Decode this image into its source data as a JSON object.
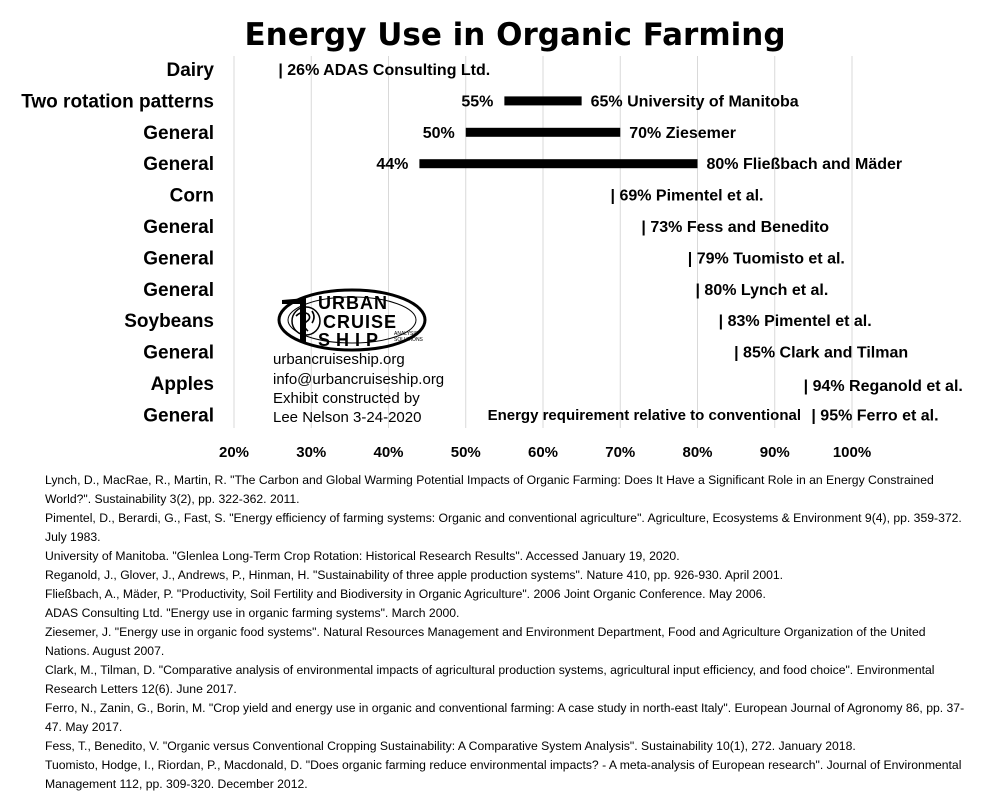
{
  "chart_data": {
    "type": "bar",
    "title": "Energy Use in Organic Farming",
    "xlabel": "Energy requirement relative to conventional",
    "xlim": [
      20,
      100
    ],
    "xticks": [
      "20%",
      "30%",
      "40%",
      "50%",
      "60%",
      "70%",
      "80%",
      "90%",
      "100%"
    ],
    "grid": "vertical",
    "rows": [
      {
        "category": "Dairy",
        "low": 26,
        "high": 26,
        "low_label": "",
        "high_label": "| 26% ADAS Consulting Ltd."
      },
      {
        "category": "Two rotation patterns",
        "low": 55,
        "high": 65,
        "low_label": "55%",
        "high_label": "65% University of Manitoba"
      },
      {
        "category": "General",
        "low": 50,
        "high": 70,
        "low_label": "50%",
        "high_label": "70% Ziesemer"
      },
      {
        "category": "General",
        "low": 44,
        "high": 80,
        "low_label": "44%",
        "high_label": "80% Fließbach and Mäder"
      },
      {
        "category": "Corn",
        "low": 69,
        "high": 69,
        "low_label": "",
        "high_label": "| 69% Pimentel et al."
      },
      {
        "category": "General",
        "low": 73,
        "high": 73,
        "low_label": "",
        "high_label": "| 73% Fess and Benedito"
      },
      {
        "category": "General",
        "low": 79,
        "high": 79,
        "low_label": "",
        "high_label": "| 79% Tuomisto et al."
      },
      {
        "category": "General",
        "low": 80,
        "high": 80,
        "low_label": "",
        "high_label": "| 80% Lynch et al."
      },
      {
        "category": "Soybeans",
        "low": 83,
        "high": 83,
        "low_label": "",
        "high_label": "| 83% Pimentel et al."
      },
      {
        "category": "General",
        "low": 85,
        "high": 85,
        "low_label": "",
        "high_label": "| 85% Clark and Tilman"
      },
      {
        "category": "Apples",
        "low": 94,
        "high": 94,
        "low_label": "",
        "high_label": "| 94% Reganold et al."
      },
      {
        "category": "General",
        "low": 95,
        "high": 95,
        "low_label": "",
        "high_label": "| 95% Ferro et al."
      }
    ]
  },
  "logo": {
    "line1": "URBAN",
    "line2": "CRUISE",
    "line3": "SHIP",
    "tag1": "ANALYSIS",
    "tag2": "SOLUTIONS"
  },
  "contact": {
    "website": "urbancruiseship.org",
    "email": "info@urbancruiseship.org",
    "credit1": "Exhibit constructed by",
    "credit2": "Lee Nelson 3-24-2020"
  },
  "references": [
    "Lynch, D., MacRae, R., Martin, R. \"The Carbon and Global Warming Potential Impacts of Organic Farming: Does It Have a Significant Role in an Energy Constrained World?\". Sustainability 3(2), pp. 322-362. 2011.",
    "Pimentel, D., Berardi, G., Fast, S. \"Energy efficiency of farming systems: Organic and conventional agriculture\". Agriculture, Ecosystems & Environment 9(4), pp. 359-372. July 1983.",
    "University of Manitoba. \"Glenlea Long-Term Crop Rotation: Historical Research Results\". Accessed January 19, 2020.",
    "Reganold, J., Glover, J., Andrews, P., Hinman, H. \"Sustainability of three apple production systems\". Nature 410, pp. 926-930. April 2001.",
    "Fließbach, A., Mäder, P. \"Productivity, Soil Fertility and Biodiversity in Organic Agriculture\". 2006 Joint Organic Conference. May 2006.",
    "ADAS Consulting Ltd. \"Energy use in organic farming systems\". March 2000.",
    "Ziesemer, J. \"Energy use in organic food systems\". Natural Resources Management and Environment Department, Food and Agriculture Organization of the United Nations. August 2007.",
    "Clark, M., Tilman, D. \"Comparative analysis of environmental impacts of agricultural production systems, agricultural input efficiency, and food choice\". Environmental Research Letters 12(6). June 2017.",
    "Ferro, N., Zanin, G., Borin, M. \"Crop yield and energy use in organic and conventional farming: A case study in north-east Italy\". European Journal of Agronomy 86, pp. 37-47. May 2017.",
    "Fess, T., Benedito, V. \"Organic versus Conventional Cropping Sustainability: A Comparative System Analysis\". Sustainability 10(1), 272. January 2018.",
    "Tuomisto, Hodge, I., Riordan, P., Macdonald, D. \"Does organic farming reduce environmental impacts? - A meta-analysis of European research\". Journal of Environmental Management 112, pp. 309-320. December 2012."
  ]
}
